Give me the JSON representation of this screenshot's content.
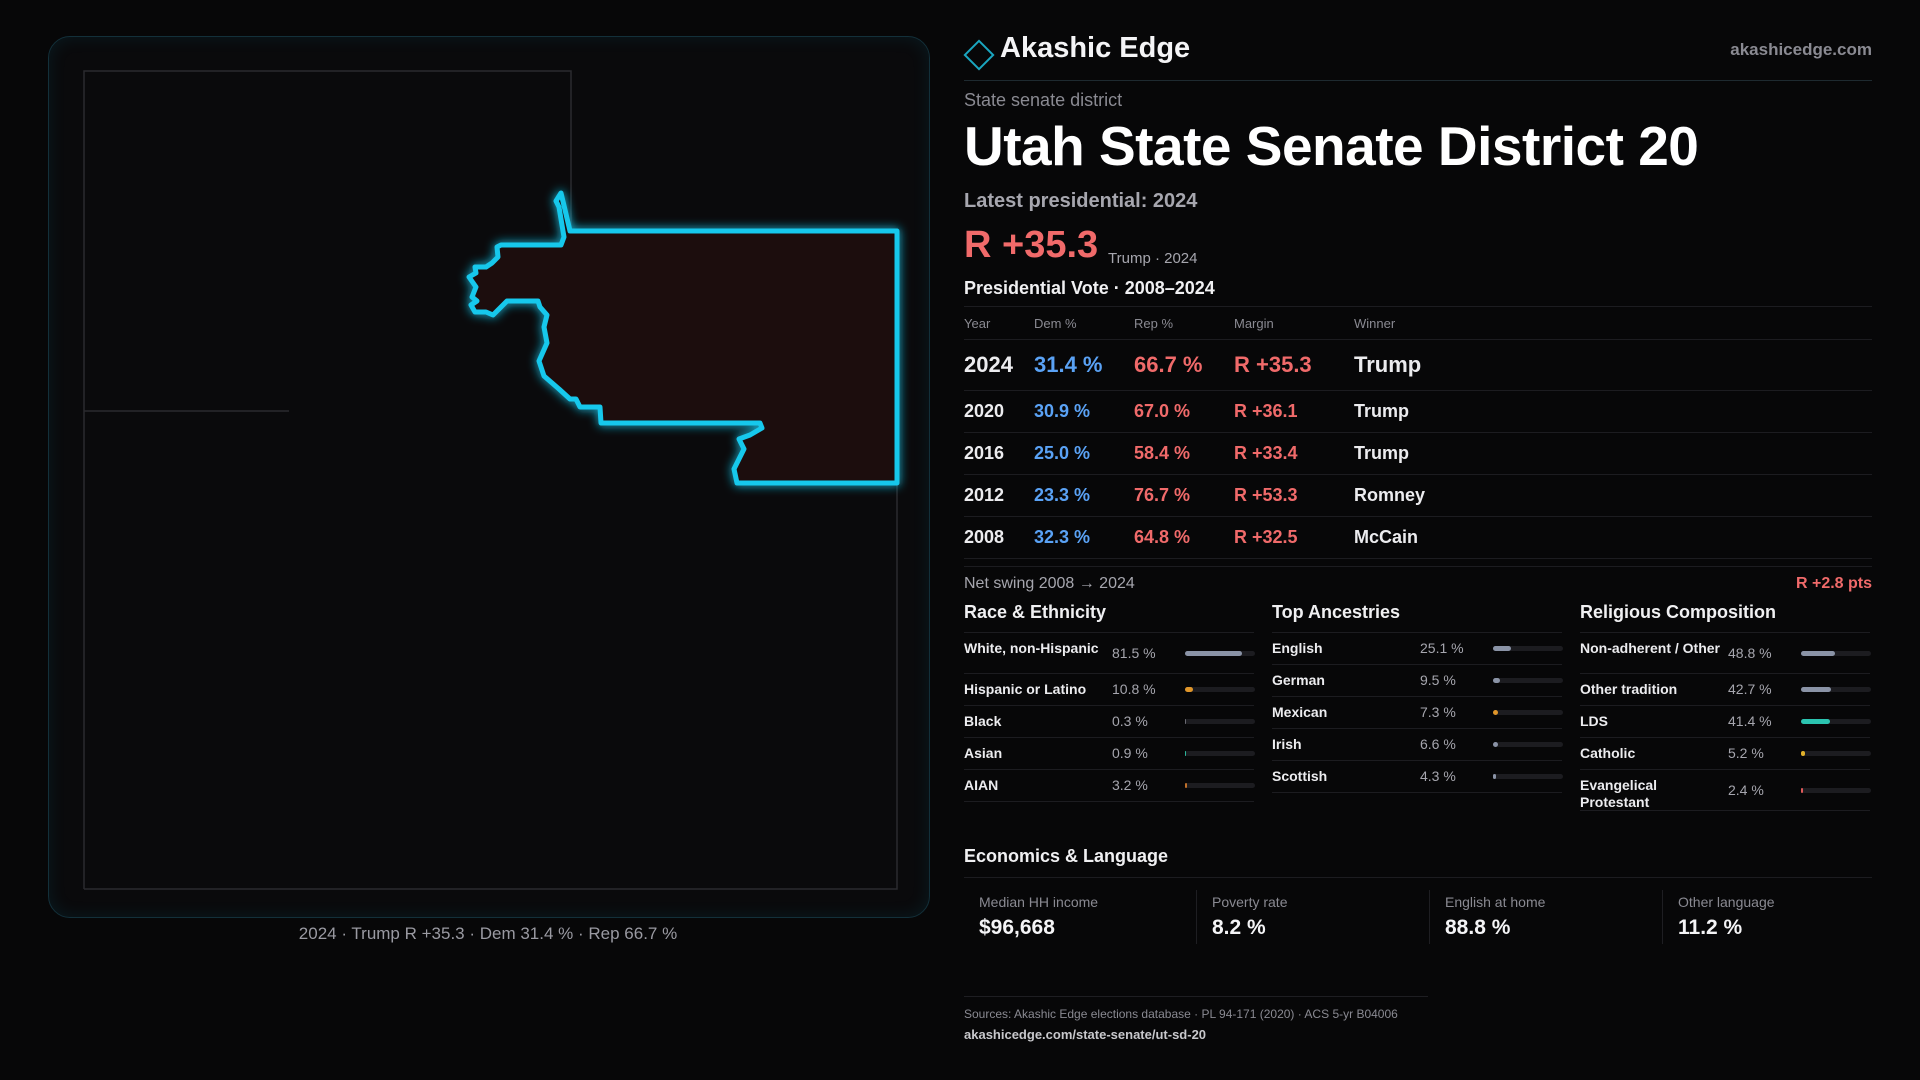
{
  "brand": {
    "name": "Akashic Edge",
    "url": "akashicedge.com"
  },
  "kicker": "State senate district",
  "title": "Utah State Senate District 20",
  "latest_label": "Latest presidential: 2024",
  "headline": {
    "margin": "R +35.3",
    "sub": "Trump · 2024"
  },
  "votes_title": "Presidential Vote · 2008–2024",
  "votes_headers": [
    "Year",
    "Dem %",
    "Rep %",
    "Margin",
    "Winner"
  ],
  "votes": [
    {
      "year": "2024",
      "dem": "31.4 %",
      "rep": "66.7 %",
      "margin": "R +35.3",
      "winner": "Trump"
    },
    {
      "year": "2020",
      "dem": "30.9 %",
      "rep": "67.0 %",
      "margin": "R +36.1",
      "winner": "Trump"
    },
    {
      "year": "2016",
      "dem": "25.0 %",
      "rep": "58.4 %",
      "margin": "R +33.4",
      "winner": "Trump"
    },
    {
      "year": "2012",
      "dem": "23.3 %",
      "rep": "76.7 %",
      "margin": "R +53.3",
      "winner": "Romney"
    },
    {
      "year": "2008",
      "dem": "32.3 %",
      "rep": "64.8 %",
      "margin": "R +32.5",
      "winner": "McCain"
    }
  ],
  "swing": {
    "label": "Net swing 2008 → 2024",
    "value": "R +2.8 pts"
  },
  "race": {
    "title": "Race & Ethnicity",
    "items": [
      {
        "label": "White, non-Hispanic",
        "value": "81.5 %",
        "pct": 81.5,
        "color": "#8a93a6"
      },
      {
        "label": "Hispanic or Latino",
        "value": "10.8 %",
        "pct": 10.8,
        "color": "#e0962a"
      },
      {
        "label": "Black",
        "value": "0.3 %",
        "pct": 0.3,
        "color": "#6a6a72"
      },
      {
        "label": "Asian",
        "value": "0.9 %",
        "pct": 0.9,
        "color": "#2bb59a"
      },
      {
        "label": "AIAN",
        "value": "3.2 %",
        "pct": 3.2,
        "color": "#c0702a"
      }
    ]
  },
  "ancestry": {
    "title": "Top Ancestries",
    "items": [
      {
        "label": "English",
        "value": "25.1 %",
        "pct": 25.1,
        "color": "#8a93a6"
      },
      {
        "label": "German",
        "value": "9.5 %",
        "pct": 9.5,
        "color": "#8a93a6"
      },
      {
        "label": "Mexican",
        "value": "7.3 %",
        "pct": 7.3,
        "color": "#e0962a"
      },
      {
        "label": "Irish",
        "value": "6.6 %",
        "pct": 6.6,
        "color": "#8a93a6"
      },
      {
        "label": "Scottish",
        "value": "4.3 %",
        "pct": 4.3,
        "color": "#8a93a6"
      }
    ]
  },
  "religion": {
    "title": "Religious Composition",
    "items": [
      {
        "label": "Non-adherent / Other",
        "value": "48.8 %",
        "pct": 48.8,
        "color": "#8a93a6"
      },
      {
        "label": "Other tradition",
        "value": "42.7 %",
        "pct": 42.7,
        "color": "#8a93a6"
      },
      {
        "label": "LDS",
        "value": "41.4 %",
        "pct": 41.4,
        "color": "#2bc4b0"
      },
      {
        "label": "Catholic",
        "value": "5.2 %",
        "pct": 5.2,
        "color": "#e0b02a"
      },
      {
        "label": "Evangelical Protestant",
        "value": "2.4 %",
        "pct": 2.4,
        "color": "#e05a5a"
      }
    ]
  },
  "economics": {
    "title": "Economics & Language",
    "items": [
      {
        "label": "Median HH income",
        "value": "$96,668"
      },
      {
        "label": "Poverty rate",
        "value": "8.2 %"
      },
      {
        "label": "English at home",
        "value": "88.8 %"
      },
      {
        "label": "Other language",
        "value": "11.2 %"
      }
    ]
  },
  "sources": "Sources: Akashic Edge elections database · PL 94-171 (2020) · ACS 5-yr B04006",
  "source_url": "akashicedge.com/state-senate/ut-sd-20",
  "map_caption": "2024 · Trump R +35.3 · Dem 31.4 % · Rep 66.7 %",
  "colors": {
    "accent": "#19c8ec",
    "dem": "#5aa2f5",
    "rep": "#f06a6a"
  }
}
